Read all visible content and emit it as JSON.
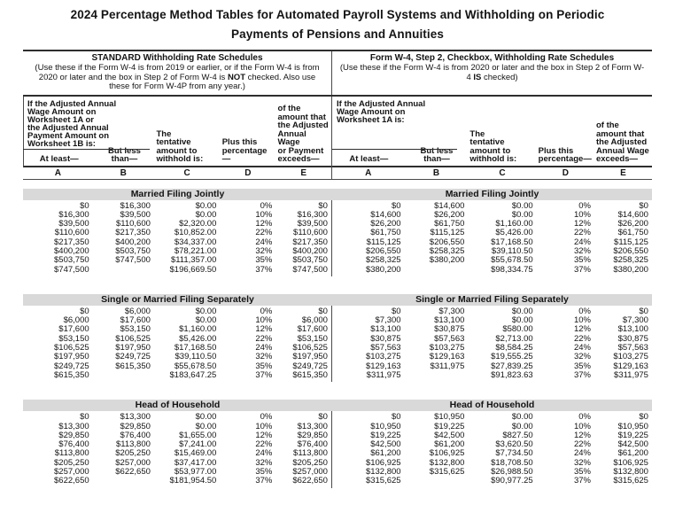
{
  "title": "2024 Percentage Method Tables for Automated Payroll Systems and Withholding on Periodic\nPayments of Pensions and Annuities",
  "panels": [
    {
      "heading": "STANDARD Withholding Rate Schedules",
      "sub": {
        "pre": "(Use these if the Form W-4 is from 2019 or earlier, or if the Form W-4 is from 2020 or later and the box in Step 2 of Form W-4 is ",
        "bold": "NOT",
        "post": " checked. Also use these for Form W-4P from any year.)"
      },
      "wage_label": "If the Adjusted Annual\nWage Amount on\nWorksheet 1A or\nthe Adjusted Annual\nPayment Amount on\nWorksheet 1B is:",
      "col_headers": [
        "At least—",
        "But less\nthan—",
        "The\ntentative\namount to\nwithhold is:",
        "Plus this\npercentage—",
        "of the\namount that\nthe Adjusted\nAnnual Wage\nor Payment\nexceeds—"
      ],
      "col_letters": [
        "A",
        "B",
        "C",
        "D",
        "E"
      ],
      "sections": [
        {
          "name": "Married Filing Jointly",
          "rows": [
            [
              "$0",
              "$16,300",
              "$0.00",
              "0%",
              "$0"
            ],
            [
              "$16,300",
              "$39,500",
              "$0.00",
              "10%",
              "$16,300"
            ],
            [
              "$39,500",
              "$110,600",
              "$2,320.00",
              "12%",
              "$39,500"
            ],
            [
              "$110,600",
              "$217,350",
              "$10,852.00",
              "22%",
              "$110,600"
            ],
            [
              "$217,350",
              "$400,200",
              "$34,337.00",
              "24%",
              "$217,350"
            ],
            [
              "$400,200",
              "$503,750",
              "$78,221.00",
              "32%",
              "$400,200"
            ],
            [
              "$503,750",
              "$747,500",
              "$111,357.00",
              "35%",
              "$503,750"
            ],
            [
              "$747,500",
              "",
              "$196,669.50",
              "37%",
              "$747,500"
            ]
          ]
        },
        {
          "name": "Single or Married Filing Separately",
          "rows": [
            [
              "$0",
              "$6,000",
              "$0.00",
              "0%",
              "$0"
            ],
            [
              "$6,000",
              "$17,600",
              "$0.00",
              "10%",
              "$6,000"
            ],
            [
              "$17,600",
              "$53,150",
              "$1,160.00",
              "12%",
              "$17,600"
            ],
            [
              "$53,150",
              "$106,525",
              "$5,426.00",
              "22%",
              "$53,150"
            ],
            [
              "$106,525",
              "$197,950",
              "$17,168.50",
              "24%",
              "$106,525"
            ],
            [
              "$197,950",
              "$249,725",
              "$39,110.50",
              "32%",
              "$197,950"
            ],
            [
              "$249,725",
              "$615,350",
              "$55,678.50",
              "35%",
              "$249,725"
            ],
            [
              "$615,350",
              "",
              "$183,647.25",
              "37%",
              "$615,350"
            ]
          ]
        },
        {
          "name": "Head of Household",
          "rows": [
            [
              "$0",
              "$13,300",
              "$0.00",
              "0%",
              "$0"
            ],
            [
              "$13,300",
              "$29,850",
              "$0.00",
              "10%",
              "$13,300"
            ],
            [
              "$29,850",
              "$76,400",
              "$1,655.00",
              "12%",
              "$29,850"
            ],
            [
              "$76,400",
              "$113,800",
              "$7,241.00",
              "22%",
              "$76,400"
            ],
            [
              "$113,800",
              "$205,250",
              "$15,469.00",
              "24%",
              "$113,800"
            ],
            [
              "$205,250",
              "$257,000",
              "$37,417.00",
              "32%",
              "$205,250"
            ],
            [
              "$257,000",
              "$622,650",
              "$53,977.00",
              "35%",
              "$257,000"
            ],
            [
              "$622,650",
              "",
              "$181,954.50",
              "37%",
              "$622,650"
            ]
          ]
        }
      ]
    },
    {
      "heading": "Form W-4, Step 2, Checkbox, Withholding Rate Schedules",
      "sub": {
        "pre": "(Use these if the Form W-4 is from 2020 or later and the box in Step 2 of Form W-4 ",
        "bold": "IS",
        "post": " checked)"
      },
      "wage_label": "If the Adjusted Annual\nWage Amount on\nWorksheet 1A is:",
      "col_headers": [
        "At least—",
        "But less\nthan—",
        "The\ntentative\namount to\nwithhold is:",
        "Plus this\npercentage—",
        "of the\namount that\nthe Adjusted\nAnnual Wage\nexceeds—"
      ],
      "col_letters": [
        "A",
        "B",
        "C",
        "D",
        "E"
      ],
      "sections": [
        {
          "name": "Married Filing Jointly",
          "rows": [
            [
              "$0",
              "$14,600",
              "$0.00",
              "0%",
              "$0"
            ],
            [
              "$14,600",
              "$26,200",
              "$0.00",
              "10%",
              "$14,600"
            ],
            [
              "$26,200",
              "$61,750",
              "$1,160.00",
              "12%",
              "$26,200"
            ],
            [
              "$61,750",
              "$115,125",
              "$5,426.00",
              "22%",
              "$61,750"
            ],
            [
              "$115,125",
              "$206,550",
              "$17,168.50",
              "24%",
              "$115,125"
            ],
            [
              "$206,550",
              "$258,325",
              "$39,110.50",
              "32%",
              "$206,550"
            ],
            [
              "$258,325",
              "$380,200",
              "$55,678.50",
              "35%",
              "$258,325"
            ],
            [
              "$380,200",
              "",
              "$98,334.75",
              "37%",
              "$380,200"
            ]
          ]
        },
        {
          "name": "Single or Married Filing Separately",
          "rows": [
            [
              "$0",
              "$7,300",
              "$0.00",
              "0%",
              "$0"
            ],
            [
              "$7,300",
              "$13,100",
              "$0.00",
              "10%",
              "$7,300"
            ],
            [
              "$13,100",
              "$30,875",
              "$580.00",
              "12%",
              "$13,100"
            ],
            [
              "$30,875",
              "$57,563",
              "$2,713.00",
              "22%",
              "$30,875"
            ],
            [
              "$57,563",
              "$103,275",
              "$8,584.25",
              "24%",
              "$57,563"
            ],
            [
              "$103,275",
              "$129,163",
              "$19,555.25",
              "32%",
              "$103,275"
            ],
            [
              "$129,163",
              "$311,975",
              "$27,839.25",
              "35%",
              "$129,163"
            ],
            [
              "$311,975",
              "",
              "$91,823.63",
              "37%",
              "$311,975"
            ]
          ]
        },
        {
          "name": "Head of Household",
          "rows": [
            [
              "$0",
              "$10,950",
              "$0.00",
              "0%",
              "$0"
            ],
            [
              "$10,950",
              "$19,225",
              "$0.00",
              "10%",
              "$10,950"
            ],
            [
              "$19,225",
              "$42,500",
              "$827.50",
              "12%",
              "$19,225"
            ],
            [
              "$42,500",
              "$61,200",
              "$3,620.50",
              "22%",
              "$42,500"
            ],
            [
              "$61,200",
              "$106,925",
              "$7,734.50",
              "24%",
              "$61,200"
            ],
            [
              "$106,925",
              "$132,800",
              "$18,708.50",
              "32%",
              "$106,925"
            ],
            [
              "$132,800",
              "$315,625",
              "$26,988.50",
              "35%",
              "$132,800"
            ],
            [
              "$315,625",
              "",
              "$90,977.25",
              "37%",
              "$315,625"
            ]
          ]
        }
      ]
    }
  ]
}
